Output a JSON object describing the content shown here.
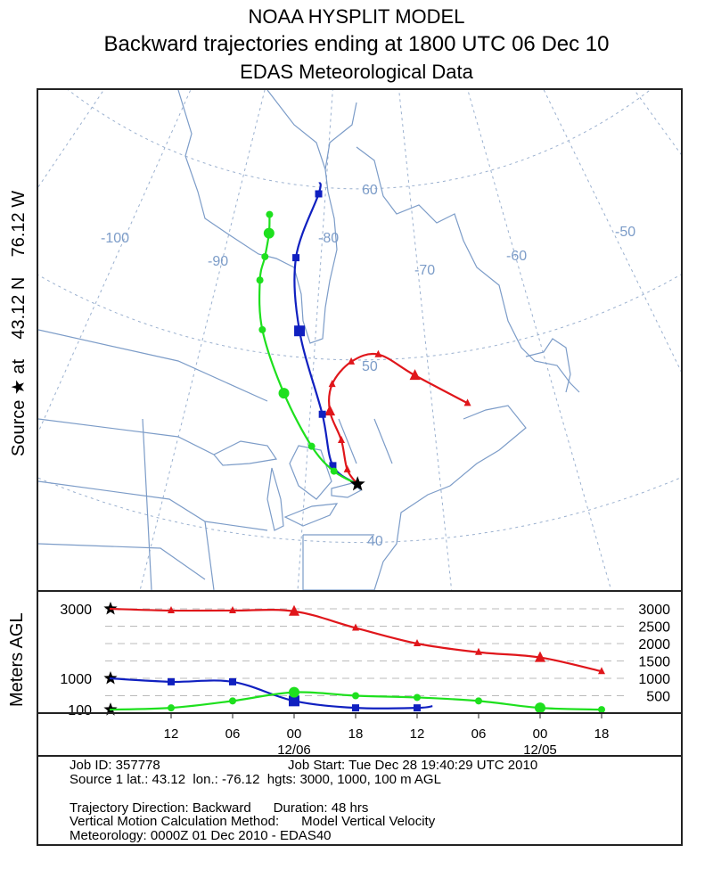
{
  "header": {
    "line1": "NOAA HYSPLIT MODEL",
    "line2": "Backward trajectories ending at 1800 UTC 06 Dec 10",
    "line3": "EDAS Meteorological Data"
  },
  "side_label": {
    "source": "Source ★ at",
    "lat": "43.12 N",
    "lon": "76.12 W",
    "height_axis": "Meters AGL"
  },
  "map": {
    "meridian_labels": [
      "-100",
      "-90",
      "-80",
      "-70",
      "-60",
      "-50"
    ],
    "parallel_labels": [
      "60",
      "50",
      "40"
    ],
    "line_color": "#7c9cc8"
  },
  "chart_data": {
    "type": "line",
    "title": "Backward trajectories ending at 1800 UTC 06 Dec 10",
    "source": {
      "lat": 43.12,
      "lon": -76.12
    },
    "xlabel": "",
    "ylabel": "Meters AGL",
    "hours": [
      0,
      -6,
      -12,
      -18,
      -24,
      -30,
      -36,
      -42,
      -48
    ],
    "x_tick_labels": [
      "12",
      "06",
      "00",
      "18",
      "12",
      "06",
      "00",
      "18"
    ],
    "x_date_labels": [
      {
        "label": "12/06",
        "hour": -18
      },
      {
        "label": "12/05",
        "hour": -42
      }
    ],
    "y_tick_labels": [
      "3000",
      "2500",
      "2000",
      "1500",
      "1000",
      "500"
    ],
    "start_height_labels": [
      "3000",
      "1000",
      "100"
    ],
    "ylim": [
      0,
      3000
    ],
    "series": [
      {
        "name": "3000 m AGL",
        "color": "#e0161b",
        "marker": "triangle",
        "heights": [
          3000,
          2950,
          2950,
          2930,
          2450,
          2000,
          1750,
          1600,
          1200
        ],
        "lat": [
          43.12,
          43.9,
          45.5,
          47.1,
          48.6,
          49.9,
          50.3,
          49.0,
          47.1
        ],
        "lon": [
          -76.12,
          -76.9,
          -77.4,
          -78.4,
          -78.3,
          -76.7,
          -74.3,
          -71.2,
          -67.1
        ]
      },
      {
        "name": "1000 m AGL",
        "color": "#1020c0",
        "marker": "square",
        "heights": [
          1000,
          900,
          900,
          350,
          150,
          150,
          200
        ],
        "hours_override": [
          0,
          -6,
          -12,
          -18,
          -24,
          -30,
          -31.5
        ],
        "lat": [
          43.12,
          44.1,
          46.9,
          51.5,
          55.7,
          59.6,
          60.3
        ],
        "lon": [
          -76.12,
          -78.0,
          -79.0,
          -81.5,
          -82.6,
          -80.8,
          -80.8
        ]
      },
      {
        "name": "100 m AGL",
        "color": "#1ee01e",
        "marker": "circle",
        "heights": [
          100,
          150,
          350,
          600,
          500,
          450,
          350,
          150,
          100
        ],
        "lat": [
          43.12,
          43.8,
          45.1,
          47.9,
          51.3,
          54.1,
          55.5,
          56.9,
          58.0
        ],
        "lon": [
          -76.12,
          -77.9,
          -79.7,
          -82.3,
          -84.9,
          -85.9,
          -85.8,
          -85.8,
          -86.1
        ]
      }
    ]
  },
  "info": {
    "job_id": "Job ID: 357778",
    "job_start": "Job Start: Tue Dec 28 19:40:29 UTC 2010",
    "source_line": "Source 1 lat.: 43.12  lon.: -76.12  hgts: 3000, 1000, 100 m AGL",
    "direction": "Trajectory Direction: Backward      Duration: 48 hrs",
    "vertical": "Vertical Motion Calculation Method:      Model Vertical Velocity",
    "meteorology": "Meteorology: 0000Z 01 Dec 2010 - EDAS40"
  }
}
